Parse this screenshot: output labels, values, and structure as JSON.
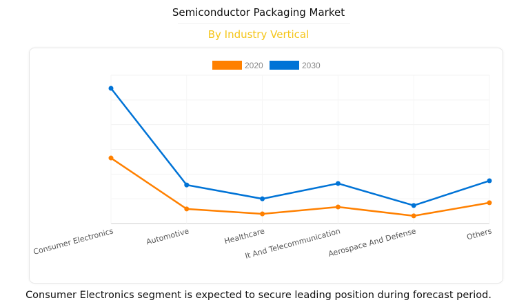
{
  "title": "Semiconductor Packaging Market",
  "subtitle": "By Industry Vertical",
  "footer": "Consumer Electronics segment is expected to secure leading position during forecast period.",
  "chart_data": {
    "type": "line",
    "categories": [
      "Consumer Electronics",
      "Automotive",
      "Healthcare",
      "It And Telecommunication",
      "Aerospace And Defense",
      "Others"
    ],
    "series": [
      {
        "name": "2020",
        "color": "#ff8000",
        "values": [
          2.65,
          0.59,
          0.39,
          0.67,
          0.31,
          0.84
        ]
      },
      {
        "name": "2030",
        "color": "#0073d6",
        "values": [
          5.47,
          1.56,
          1.0,
          1.62,
          0.73,
          1.73
        ]
      }
    ],
    "ylim": [
      0,
      6
    ],
    "y_axis_labels_shown": false,
    "grid": true,
    "legend": "top-center"
  }
}
